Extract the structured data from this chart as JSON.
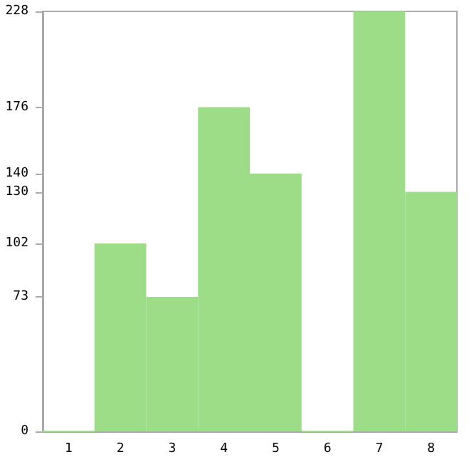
{
  "chart_data": {
    "type": "bar",
    "categories": [
      "1",
      "2",
      "3",
      "4",
      "5",
      "6",
      "7",
      "8"
    ],
    "values": [
      0,
      102,
      73,
      176,
      140,
      0,
      228,
      130
    ],
    "color": "#9ddd88",
    "ylim": [
      0,
      228
    ],
    "yticks": [
      0,
      73,
      102,
      130,
      140,
      176,
      228
    ],
    "grid": false
  }
}
